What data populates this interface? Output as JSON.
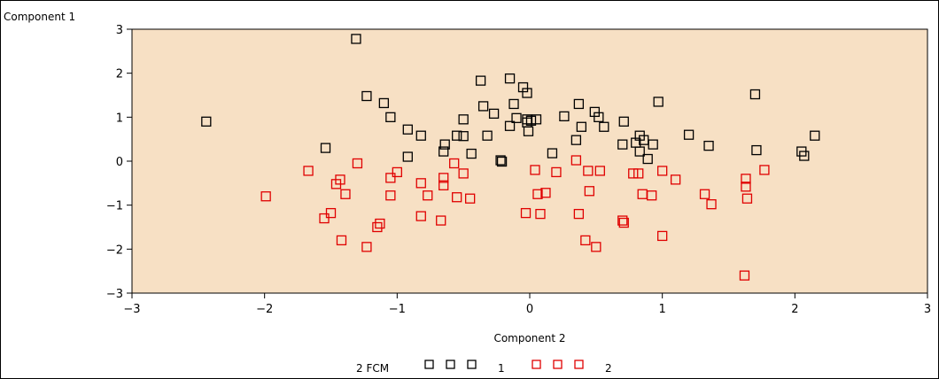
{
  "chart_data": {
    "type": "scatter",
    "xlabel": "Component 2",
    "ylabel": "Component 1",
    "xlim": [
      -3,
      3
    ],
    "ylim": [
      -3,
      3
    ],
    "x_ticks": [
      "−3",
      "−2",
      "−1",
      "0",
      "1",
      "2",
      "3"
    ],
    "y_ticks": [
      "3",
      "2",
      "1",
      "0",
      "−1",
      "−2",
      "−3"
    ],
    "background_color": "#f7e0c4",
    "marker": "square",
    "legend": {
      "title": "2 FCM",
      "placement": "bottom",
      "entries": [
        "1",
        "2"
      ]
    },
    "series": [
      {
        "name": "1",
        "color": "#000000",
        "points": [
          [
            -2.44,
            0.9
          ],
          [
            -1.31,
            2.78
          ],
          [
            -1.23,
            1.48
          ],
          [
            -1.1,
            1.32
          ],
          [
            -1.05,
            1.0
          ],
          [
            -0.92,
            0.72
          ],
          [
            -0.82,
            0.58
          ],
          [
            -0.92,
            0.1
          ],
          [
            -1.54,
            0.3
          ],
          [
            -0.65,
            0.22
          ],
          [
            -0.64,
            0.38
          ],
          [
            -0.55,
            0.58
          ],
          [
            -0.5,
            0.95
          ],
          [
            -0.5,
            0.57
          ],
          [
            -0.44,
            0.17
          ],
          [
            -0.37,
            1.83
          ],
          [
            -0.35,
            1.25
          ],
          [
            -0.32,
            0.58
          ],
          [
            -0.27,
            1.08
          ],
          [
            -0.22,
            0.02
          ],
          [
            -0.21,
            -0.01
          ],
          [
            -0.15,
            0.8
          ],
          [
            -0.15,
            1.88
          ],
          [
            -0.12,
            1.3
          ],
          [
            -0.1,
            0.98
          ],
          [
            -0.05,
            1.68
          ],
          [
            -0.02,
            1.55
          ],
          [
            -0.02,
            0.95
          ],
          [
            -0.02,
            0.88
          ],
          [
            -0.01,
            0.68
          ],
          [
            0.01,
            0.92
          ],
          [
            0.05,
            0.95
          ],
          [
            0.17,
            0.18
          ],
          [
            0.26,
            1.02
          ],
          [
            0.35,
            0.48
          ],
          [
            0.37,
            1.3
          ],
          [
            0.39,
            0.78
          ],
          [
            0.49,
            1.12
          ],
          [
            0.52,
            1.0
          ],
          [
            0.56,
            0.78
          ],
          [
            0.7,
            0.38
          ],
          [
            0.71,
            0.9
          ],
          [
            0.8,
            0.42
          ],
          [
            0.83,
            0.58
          ],
          [
            0.83,
            0.22
          ],
          [
            0.86,
            0.48
          ],
          [
            0.89,
            0.05
          ],
          [
            0.93,
            0.38
          ],
          [
            0.97,
            1.35
          ],
          [
            1.2,
            0.6
          ],
          [
            1.35,
            0.35
          ],
          [
            1.7,
            1.52
          ],
          [
            1.71,
            0.25
          ],
          [
            2.05,
            0.22
          ],
          [
            2.07,
            0.12
          ],
          [
            2.15,
            0.58
          ]
        ]
      },
      {
        "name": "2",
        "color": "#e00000",
        "points": [
          [
            -1.99,
            -0.8
          ],
          [
            -1.67,
            -0.22
          ],
          [
            -1.55,
            -1.3
          ],
          [
            -1.5,
            -1.18
          ],
          [
            -1.46,
            -0.52
          ],
          [
            -1.43,
            -0.42
          ],
          [
            -1.42,
            -1.8
          ],
          [
            -1.39,
            -0.75
          ],
          [
            -1.3,
            -0.05
          ],
          [
            -1.23,
            -1.95
          ],
          [
            -1.15,
            -1.5
          ],
          [
            -1.13,
            -1.42
          ],
          [
            -1.05,
            -0.38
          ],
          [
            -1.05,
            -0.78
          ],
          [
            -1.0,
            -0.25
          ],
          [
            -0.82,
            -1.25
          ],
          [
            -0.82,
            -0.5
          ],
          [
            -0.77,
            -0.78
          ],
          [
            -0.67,
            -1.35
          ],
          [
            -0.65,
            -0.55
          ],
          [
            -0.65,
            -0.38
          ],
          [
            -0.57,
            -0.05
          ],
          [
            -0.55,
            -0.82
          ],
          [
            -0.5,
            -0.28
          ],
          [
            -0.45,
            -0.85
          ],
          [
            -0.03,
            -1.18
          ],
          [
            0.04,
            -0.2
          ],
          [
            0.06,
            -0.75
          ],
          [
            0.08,
            -1.2
          ],
          [
            0.12,
            -0.72
          ],
          [
            0.2,
            -0.25
          ],
          [
            0.35,
            0.02
          ],
          [
            0.37,
            -1.2
          ],
          [
            0.42,
            -1.8
          ],
          [
            0.44,
            -0.22
          ],
          [
            0.45,
            -0.68
          ],
          [
            0.5,
            -1.95
          ],
          [
            0.53,
            -0.22
          ],
          [
            0.7,
            -1.35
          ],
          [
            0.71,
            -1.4
          ],
          [
            0.78,
            -0.28
          ],
          [
            0.82,
            -0.28
          ],
          [
            0.85,
            -0.75
          ],
          [
            0.92,
            -0.78
          ],
          [
            1.0,
            -0.22
          ],
          [
            1.0,
            -1.7
          ],
          [
            1.1,
            -0.42
          ],
          [
            1.32,
            -0.75
          ],
          [
            1.37,
            -0.98
          ],
          [
            1.62,
            -2.6
          ],
          [
            1.63,
            -0.4
          ],
          [
            1.63,
            -0.58
          ],
          [
            1.64,
            -0.85
          ],
          [
            1.77,
            -0.2
          ]
        ]
      }
    ]
  }
}
